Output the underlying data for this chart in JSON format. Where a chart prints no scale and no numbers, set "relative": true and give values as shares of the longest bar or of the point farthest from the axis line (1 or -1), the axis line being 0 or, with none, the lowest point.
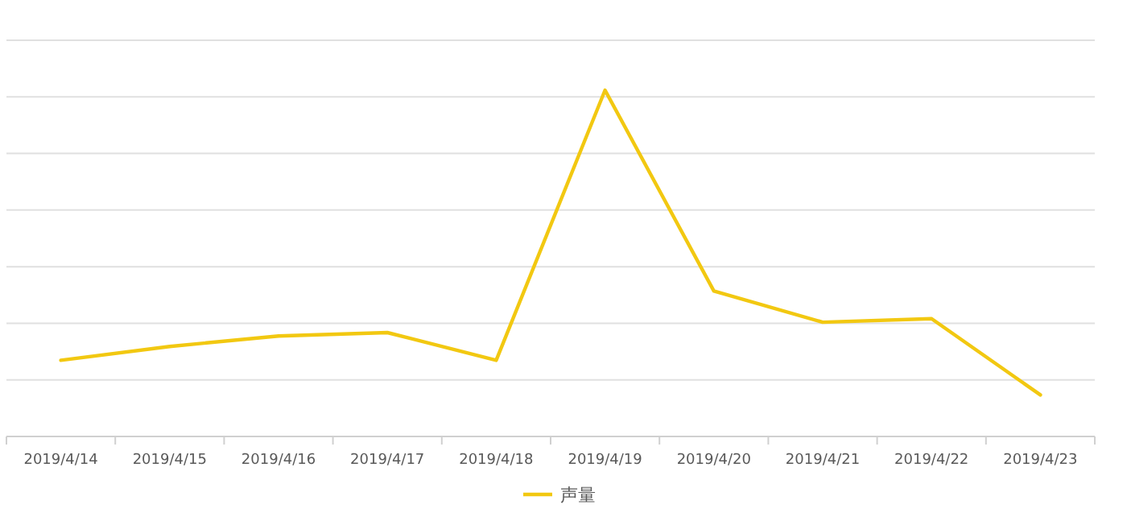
{
  "chart_data": {
    "type": "line",
    "relative": true,
    "grid": "y",
    "legend": "bottom",
    "marker": "none",
    "line_style": "solid",
    "categories": [
      "2019/4/14",
      "2019/4/15",
      "2019/4/16",
      "2019/4/17",
      "2019/4/18",
      "2019/4/19",
      "2019/4/20",
      "2019/4/21",
      "2019/4/22",
      "2019/4/23"
    ],
    "series": [
      {
        "name": "声量",
        "color": "#f2c811",
        "values": [
          0.22,
          0.26,
          0.29,
          0.3,
          0.22,
          1,
          0.42,
          0.33,
          0.34,
          0.12
        ]
      }
    ]
  }
}
